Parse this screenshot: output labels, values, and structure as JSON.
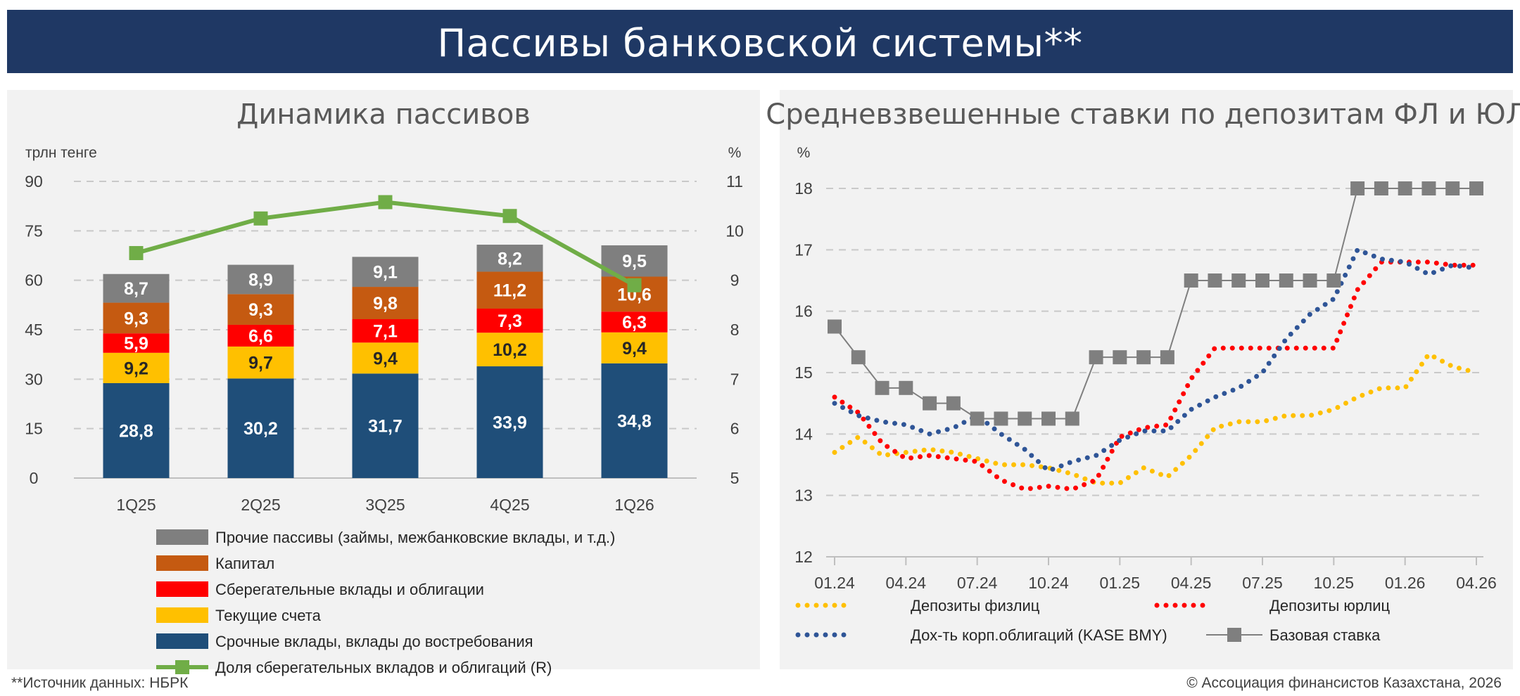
{
  "page_title": "Пассивы банковской системы**",
  "footer": {
    "source": "**Источник данных: НБРК",
    "copyright": "© Ассоциация финансистов Казахстана, 2026"
  },
  "colors": {
    "banner": "#1f3864",
    "panel": "#f2f2f2",
    "srochnye": "#1f4e79",
    "tekushchie": "#ffc000",
    "sberegatelnye": "#ff0000",
    "kapital": "#c55a11",
    "prochie": "#7f7f7f",
    "share_line": "#70ad47",
    "fizlic": "#ffc000",
    "yurlic": "#ff0000",
    "korp": "#2f5597",
    "bazovaya": "#7f7f7f"
  },
  "chart_data": [
    {
      "type": "bar",
      "stacked": true,
      "title": "Динамика пассивов",
      "ylabel": "трлн тенге",
      "y2label": "%",
      "ylim": [
        0,
        90
      ],
      "yticks": [
        "0",
        "15",
        "30",
        "45",
        "60",
        "75",
        "90"
      ],
      "y2lim": [
        5,
        11
      ],
      "y2ticks": [
        "5",
        "6",
        "7",
        "8",
        "9",
        "10",
        "11"
      ],
      "grid": true,
      "legend_position": "bottom",
      "categories": [
        "1Q25",
        "2Q25",
        "3Q25",
        "4Q25",
        "1Q26"
      ],
      "series": [
        {
          "name": "Срочные вклады, вклады до востребования",
          "values": [
            28.8,
            30.2,
            31.7,
            33.9,
            34.8
          ],
          "labels": [
            "28,8",
            "30,2",
            "31,7",
            "33,9",
            "34,8"
          ],
          "color": "#1f4e79",
          "label_color": "#ffffff"
        },
        {
          "name": "Текущие счета",
          "values": [
            9.2,
            9.7,
            9.4,
            10.2,
            9.4
          ],
          "labels": [
            "9,2",
            "9,7",
            "9,4",
            "10,2",
            "9,4"
          ],
          "color": "#ffc000",
          "label_color": "#262626"
        },
        {
          "name": "Сберегательные вклады и облигации",
          "values": [
            5.9,
            6.6,
            7.1,
            7.3,
            6.3
          ],
          "labels": [
            "5,9",
            "6,6",
            "7,1",
            "7,3",
            "6,3"
          ],
          "color": "#ff0000",
          "label_color": "#ffffff"
        },
        {
          "name": "Капитал",
          "values": [
            9.3,
            9.3,
            9.8,
            11.2,
            10.6
          ],
          "labels": [
            "9,3",
            "9,3",
            "9,8",
            "11,2",
            "10,6"
          ],
          "color": "#c55a11",
          "label_color": "#ffffff"
        },
        {
          "name": "Прочие пассивы (займы, межбанковские вклады, и т.д.)",
          "values": [
            8.7,
            8.9,
            9.1,
            8.2,
            9.5
          ],
          "labels": [
            "8,7",
            "8,9",
            "9,1",
            "8,2",
            "9,5"
          ],
          "color": "#7f7f7f",
          "label_color": "#ffffff"
        }
      ],
      "line_series": {
        "name": "Доля сберегательных вкладов и облигаций (R)",
        "axis": "right",
        "values": [
          9.55,
          10.25,
          10.58,
          10.3,
          8.9
        ],
        "color": "#70ad47"
      },
      "legend_order": [
        "Прочие пассивы (займы, межбанковские вклады, и т.д.)",
        "Капитал",
        "Сберегательные вклады и облигации",
        "Текущие счета",
        "Срочные вклады, вклады до востребования",
        "Доля сберегательных вкладов и облигаций (R)"
      ]
    },
    {
      "type": "line",
      "title": "Средневзвешенные ставки по депозитам ФЛ и ЮЛ",
      "ylabel": "%",
      "ylim": [
        12,
        18
      ],
      "yticks": [
        "12",
        "13",
        "14",
        "15",
        "16",
        "17",
        "18"
      ],
      "grid": true,
      "legend_position": "bottom",
      "x_ticks": [
        "01.24",
        "04.24",
        "07.24",
        "10.24",
        "01.25",
        "04.25",
        "07.25",
        "10.25",
        "01.26",
        "04.26"
      ],
      "x": [
        "01.24",
        "02.24",
        "03.24",
        "04.24",
        "05.24",
        "06.24",
        "07.24",
        "08.24",
        "09.24",
        "10.24",
        "11.24",
        "12.24",
        "01.25",
        "02.25",
        "03.25",
        "04.25",
        "05.25",
        "06.25",
        "07.25",
        "08.25",
        "09.25",
        "10.25",
        "11.25",
        "12.25",
        "01.26",
        "02.26",
        "03.26",
        "04.26"
      ],
      "series": [
        {
          "name": "Депозиты физлиц",
          "style": "dotted",
          "color": "#ffc000",
          "values": [
            13.7,
            13.95,
            13.65,
            13.7,
            13.75,
            13.7,
            13.6,
            13.5,
            13.5,
            13.45,
            13.35,
            13.2,
            13.2,
            13.45,
            13.3,
            13.65,
            14.1,
            14.2,
            14.2,
            14.3,
            14.3,
            14.4,
            14.6,
            14.75,
            14.75,
            15.3,
            15.1,
            15.0
          ]
        },
        {
          "name": "Депозиты юрлиц",
          "style": "dotted",
          "color": "#ff0000",
          "values": [
            14.6,
            14.35,
            13.85,
            13.6,
            13.65,
            13.6,
            13.55,
            13.25,
            13.1,
            13.15,
            13.1,
            13.25,
            13.95,
            14.1,
            14.15,
            14.9,
            15.4,
            15.4,
            15.4,
            15.4,
            15.4,
            15.4,
            16.35,
            16.8,
            16.8,
            16.8,
            16.75,
            16.75
          ]
        },
        {
          "name": "Дох-ть корп.облигаций (KASE BMY)",
          "style": "dotted",
          "color": "#2f5597",
          "values": [
            14.5,
            14.3,
            14.2,
            14.15,
            14.0,
            14.1,
            14.3,
            14.0,
            13.75,
            13.4,
            13.55,
            13.65,
            13.9,
            14.05,
            14.05,
            14.4,
            14.6,
            14.75,
            15.0,
            15.55,
            15.95,
            16.2,
            17.0,
            16.85,
            16.8,
            16.6,
            16.75,
            16.7
          ]
        },
        {
          "name": "Базовая ставка",
          "style": "step-markers",
          "color": "#7f7f7f",
          "values": [
            15.75,
            15.25,
            14.75,
            14.75,
            14.5,
            14.5,
            14.25,
            14.25,
            14.25,
            14.25,
            14.25,
            15.25,
            15.25,
            15.25,
            15.25,
            16.5,
            16.5,
            16.5,
            16.5,
            16.5,
            16.5,
            16.5,
            18.0,
            18.0,
            18.0,
            18.0,
            18.0,
            18.0
          ]
        }
      ]
    }
  ]
}
